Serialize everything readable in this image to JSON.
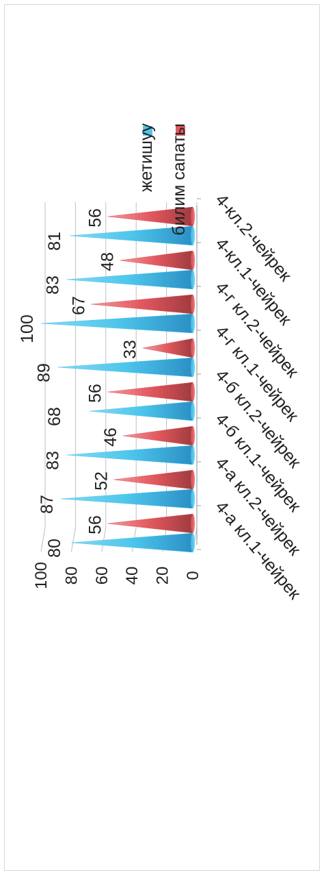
{
  "chart_data": {
    "type": "bar",
    "style": "3d-cone",
    "orientation": "rotated-90",
    "categories": [
      "4-а кл.1-чейрек",
      "4-а кл.2-чейрек",
      "4-б кл.1-чейрек",
      "4-б кл.2-чейрек",
      "4-г кл.1-чейрек",
      "4-г кл.2-чейрек",
      "4-кл.1-чейрек",
      "4-кл.2-чейрек"
    ],
    "series": [
      {
        "name": "жетишуу",
        "values": [
          80,
          87,
          83,
          68,
          89,
          100,
          83,
          81
        ],
        "color": "#4dc6ec"
      },
      {
        "name": "билим сапаты",
        "values": [
          56,
          52,
          46,
          56,
          33,
          67,
          48,
          56
        ],
        "color": "#e2585e"
      }
    ],
    "ylim": [
      0,
      100
    ],
    "yticks": [
      "0",
      "20",
      "40",
      "60",
      "80",
      "100"
    ],
    "grid": true,
    "legend_position": "right"
  }
}
